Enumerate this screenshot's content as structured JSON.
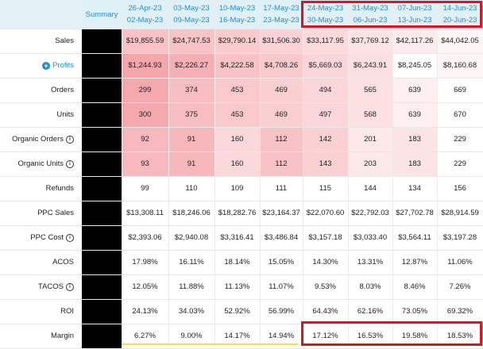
{
  "header": {
    "summary_label": "Summary",
    "weeks": [
      {
        "start": "26-Apr-23",
        "end": "02-May-23"
      },
      {
        "start": "03-May-23",
        "end": "09-May-23"
      },
      {
        "start": "10-May-23",
        "end": "16-May-23"
      },
      {
        "start": "17-May-23",
        "end": "23-May-23"
      },
      {
        "start": "24-May-23",
        "end": "30-May-23"
      },
      {
        "start": "31-May-23",
        "end": "06-Jun-23"
      },
      {
        "start": "07-Jun-23",
        "end": "13-Jun-23"
      },
      {
        "start": "14-Jun-23",
        "end": "20-Jun-23"
      }
    ]
  },
  "rows": [
    {
      "label": "Sales",
      "info": false,
      "link": false,
      "values": [
        "$19,855.59",
        "$24,747.53",
        "$29,790.14",
        "$31,506.30",
        "$33,117.95",
        "$37,769.12",
        "$42,117.26",
        "$44,042.05"
      ],
      "colors": [
        "#f8c2c6",
        "#f8c3c6",
        "#f9cbce",
        "#fad2d5",
        "#fbdadc",
        "#fce3e5",
        "#fdeced",
        "#fef5f6"
      ]
    },
    {
      "label": "Profits",
      "info": false,
      "link": true,
      "values": [
        "$1,244.93",
        "$2,226.27",
        "$4,222.58",
        "$4,708.26",
        "$5,669.03",
        "$6,243.91",
        "$8,245.05",
        "$8,160.68"
      ],
      "colors": [
        "#f5a6ab",
        "#f6b0b5",
        "#f8c2c6",
        "#f9c9cc",
        "#fbd6d9",
        "#fcdfe1",
        "#ffffff",
        "#fff5f6"
      ]
    },
    {
      "label": "Orders",
      "info": false,
      "link": false,
      "values": [
        "299",
        "374",
        "453",
        "469",
        "494",
        "565",
        "639",
        "669"
      ],
      "colors": [
        "#f5a9ae",
        "#f8bdc1",
        "#f9c9cc",
        "#facfd2",
        "#fbd6d9",
        "#fce0e2",
        "#feeff0",
        "#ffffff"
      ]
    },
    {
      "label": "Units",
      "info": false,
      "link": false,
      "values": [
        "300",
        "375",
        "453",
        "469",
        "497",
        "568",
        "639",
        "670"
      ],
      "colors": [
        "#f5a9ae",
        "#f8bdc1",
        "#f9c9cc",
        "#facfd2",
        "#fbd6d9",
        "#fce0e2",
        "#feeff0",
        "#ffffff"
      ]
    },
    {
      "label": "Organic Orders",
      "info": true,
      "link": false,
      "values": [
        "92",
        "91",
        "160",
        "112",
        "142",
        "201",
        "183",
        "229"
      ],
      "colors": [
        "#f7b9bd",
        "#f7b8bc",
        "#fbd8da",
        "#f8c2c6",
        "#fad0d3",
        "#fde9ea",
        "#fce3e5",
        "#ffffff"
      ]
    },
    {
      "label": "Organic Units",
      "info": true,
      "link": false,
      "values": [
        "93",
        "91",
        "160",
        "112",
        "143",
        "203",
        "183",
        "229"
      ],
      "colors": [
        "#f7b9bd",
        "#f7b8bc",
        "#fbd8da",
        "#f8c2c6",
        "#fad0d3",
        "#fde9ea",
        "#fce3e5",
        "#ffffff"
      ]
    },
    {
      "label": "Refunds",
      "info": false,
      "link": false,
      "values": [
        "99",
        "110",
        "109",
        "111",
        "115",
        "144",
        "134",
        "156"
      ],
      "colors": [
        "#ffffff",
        "#ffffff",
        "#ffffff",
        "#ffffff",
        "#ffffff",
        "#ffffff",
        "#ffffff",
        "#ffffff"
      ]
    },
    {
      "label": "PPC Sales",
      "info": false,
      "link": false,
      "values": [
        "$13,308.11",
        "$18,246.06",
        "$18,282.76",
        "$23,164.37",
        "$22,070.60",
        "$22,792.03",
        "$27,702.78",
        "$28,914.59"
      ],
      "colors": [
        "#ffffff",
        "#ffffff",
        "#ffffff",
        "#ffffff",
        "#ffffff",
        "#ffffff",
        "#ffffff",
        "#ffffff"
      ]
    },
    {
      "label": "PPC Cost",
      "info": true,
      "link": false,
      "values": [
        "$2,393.06",
        "$2,940.08",
        "$3,316.41",
        "$3,486.84",
        "$3,157.18",
        "$3,033.40",
        "$3,564.11",
        "$3,197.28"
      ],
      "colors": [
        "#ffffff",
        "#ffffff",
        "#ffffff",
        "#ffffff",
        "#ffffff",
        "#ffffff",
        "#ffffff",
        "#ffffff"
      ]
    },
    {
      "label": "ACOS",
      "info": false,
      "link": false,
      "values": [
        "17.98%",
        "16.11%",
        "18.14%",
        "15.05%",
        "14.30%",
        "13.31%",
        "12.87%",
        "11.06%"
      ],
      "colors": [
        "#ffffff",
        "#ffffff",
        "#ffffff",
        "#ffffff",
        "#ffffff",
        "#ffffff",
        "#ffffff",
        "#ffffff"
      ]
    },
    {
      "label": "TACOS",
      "info": true,
      "link": false,
      "values": [
        "12.05%",
        "11.88%",
        "11.13%",
        "11.07%",
        "9.53%",
        "8.03%",
        "8.46%",
        "7.26%"
      ],
      "colors": [
        "#ffffff",
        "#ffffff",
        "#ffffff",
        "#ffffff",
        "#ffffff",
        "#ffffff",
        "#ffffff",
        "#ffffff"
      ]
    },
    {
      "label": "ROI",
      "info": false,
      "link": false,
      "values": [
        "24.13%",
        "34.03%",
        "52.92%",
        "56.99%",
        "64.43%",
        "62.16%",
        "73.05%",
        "69.32%"
      ],
      "colors": [
        "#ffffff",
        "#ffffff",
        "#ffffff",
        "#ffffff",
        "#ffffff",
        "#ffffff",
        "#ffffff",
        "#ffffff"
      ]
    },
    {
      "label": "Margin",
      "info": false,
      "link": false,
      "values": [
        "6.27%",
        "9.00%",
        "14.17%",
        "14.94%",
        "17.12%",
        "16.53%",
        "19.58%",
        "18.53%"
      ],
      "colors": [
        "#ffffff",
        "#ffffff",
        "#ffffff",
        "#ffffff",
        "#ffffff",
        "#ffffff",
        "#ffffff",
        "#ffffff"
      ]
    }
  ],
  "colors": {
    "header_bg": "#dff0f7",
    "header_text": "#2b8ccf",
    "highlight_border": "#e3101d",
    "summary_fill": "#000000",
    "underline": "#f4e04d"
  },
  "icons": {
    "info": "info-circle-icon",
    "expand": "plus-circle-icon"
  }
}
